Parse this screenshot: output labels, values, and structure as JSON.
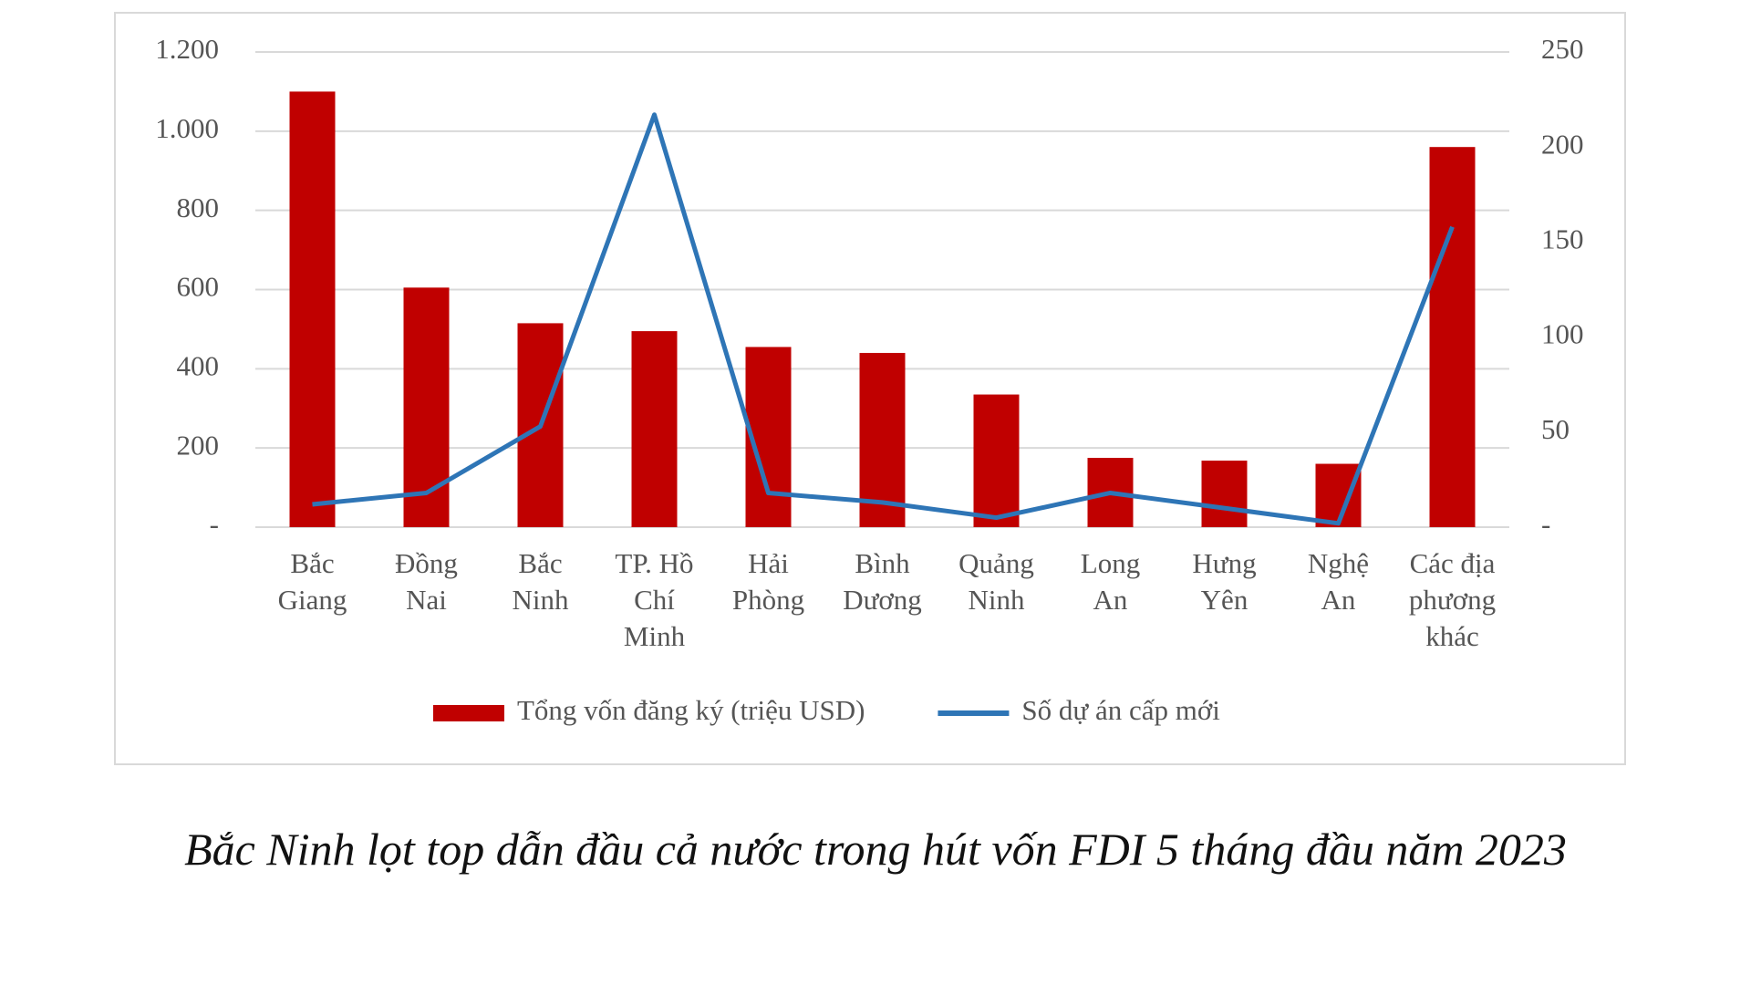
{
  "chart_data": {
    "type": "bar_line",
    "categories": [
      "Bắc\nGiang",
      "Đồng\nNai",
      "Bắc\nNinh",
      "TP. Hồ\nChí\nMinh",
      "Hải\nPhòng",
      "Bình\nDương",
      "Quảng\nNinh",
      "Long\nAn",
      "Hưng\nYên",
      "Nghệ\nAn",
      "Các địa\nphương\nkhác"
    ],
    "series": [
      {
        "name": "Tổng vốn đăng ký (triệu USD)",
        "color": "#c00000",
        "type": "bar",
        "values": [
          1100,
          605,
          515,
          495,
          455,
          440,
          335,
          175,
          168,
          160,
          960
        ]
      },
      {
        "name": "Số dự án cấp mới",
        "color": "#2e75b6",
        "type": "line",
        "axis": "y2",
        "values": [
          12,
          18,
          53,
          217,
          18,
          13,
          5,
          18,
          10,
          2,
          158
        ]
      }
    ],
    "ylim": [
      0,
      1200
    ],
    "yticks": [
      {
        "value": 0,
        "label": "-"
      },
      200,
      400,
      600,
      800,
      {
        "value": 1000,
        "label": "1.000"
      },
      {
        "value": 1200,
        "label": "1.200"
      }
    ],
    "y2lim": [
      0,
      250
    ],
    "y2ticks": [
      {
        "value": 0,
        "label": "-"
      },
      50,
      100,
      150,
      200,
      250
    ],
    "grid": true,
    "legend": "bottom",
    "caption": "Bắc Ninh lọt top dẫn đầu cả nước trong hút vốn FDI 5 tháng đầu năm 2023"
  }
}
